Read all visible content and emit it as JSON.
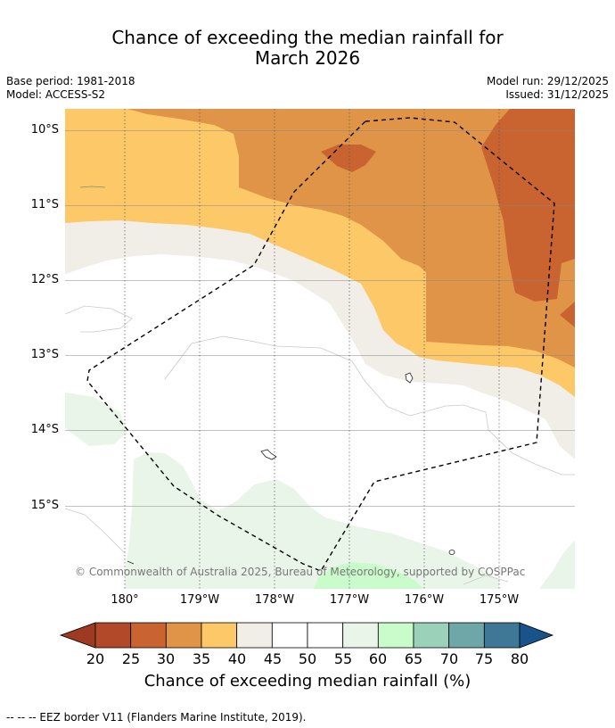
{
  "title_line1": "Chance of exceeding the median rainfall for",
  "title_line2": "March 2026",
  "base_period": "Base period: 1981-2018",
  "model": "Model: ACCESS-S2",
  "model_run": "Model run: 29/12/2025",
  "issued": "Issued: 31/12/2025",
  "map": {
    "lat_labels": [
      "10°S",
      "11°S",
      "12°S",
      "13°S",
      "14°S",
      "15°S"
    ],
    "lon_labels": [
      "180°",
      "179°W",
      "178°W",
      "177°W",
      "176°W",
      "175°W"
    ],
    "copyright": "© Commonwealth of Australia 2025, Bureau of Meteorology, supported by COSPPac"
  },
  "colorbar": {
    "ticks": [
      "20",
      "25",
      "30",
      "35",
      "40",
      "45",
      "50",
      "55",
      "60",
      "65",
      "70",
      "75",
      "80"
    ],
    "colors": [
      "#b24a2a",
      "#c9632f",
      "#e09447",
      "#fdc968",
      "#f1ede7",
      "#ffffff",
      "#ffffff",
      "#eaf5ea",
      "#c9fbcb",
      "#9bd1b9",
      "#6fa7a9",
      "#3f7896"
    ],
    "under_color": "#9e3a22",
    "over_color": "#1a5389",
    "label": "Chance of exceeding median rainfall (%)"
  },
  "legend_note": "--  --  -- EEZ border V11 (Flanders Marine Institute, 2019)."
}
